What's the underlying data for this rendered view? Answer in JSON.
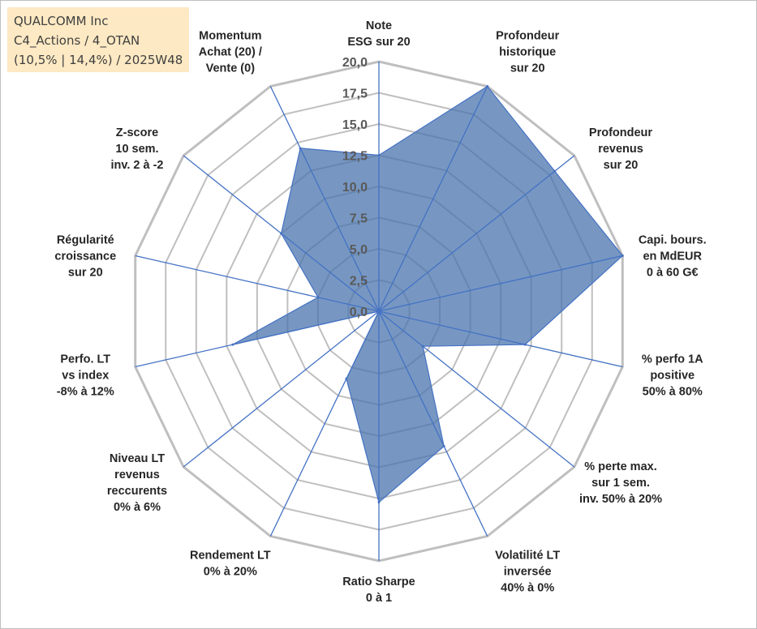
{
  "title_box": {
    "line1": "QUALCOMM Inc",
    "line2": "C4_Actions / 4_OTAN",
    "line3": "(10,5% | 14,4%) / 2025W48"
  },
  "chart_data": {
    "type": "radar",
    "ylim": [
      0,
      20
    ],
    "ticks": [
      "0,0",
      "2,5",
      "5,0",
      "7,5",
      "10,0",
      "12,5",
      "15,0",
      "17,5",
      "20,0"
    ],
    "axes": [
      [
        "Note",
        "ESG sur 20"
      ],
      [
        "Profondeur",
        "historique",
        "sur 20"
      ],
      [
        "Profondeur",
        "revenus",
        "sur 20"
      ],
      [
        "Capi. bours.",
        "en MdEUR",
        "0 à 60 G€"
      ],
      [
        "% perfo 1A",
        "positive",
        "50% à 80%"
      ],
      [
        "% perte max.",
        "sur 1 sem.",
        "inv. 50% à 20%"
      ],
      [
        "Volatilité LT",
        "inversée",
        "40% à 0%"
      ],
      [
        "Ratio Sharpe",
        "0 à 1"
      ],
      [
        "Rendement LT",
        "0% à 20%"
      ],
      [
        "Niveau LT",
        "revenus",
        "reccurents",
        "0% à 6%"
      ],
      [
        "Perfo. LT",
        "vs index",
        "-8% à 12%"
      ],
      [
        "Régularité",
        "croissance",
        "sur 20"
      ],
      [
        "Z-score",
        "10 sem.",
        "inv. 2 à -2"
      ],
      [
        "Momentum",
        "Achat (20) /",
        "Vente (0)"
      ]
    ],
    "series": [
      {
        "values": [
          12.5,
          20.0,
          18.0,
          20.0,
          12.0,
          4.5,
          12.0,
          15.3,
          6.0,
          0.0,
          12.0,
          5.0,
          10.0,
          14.5
        ]
      }
    ],
    "colors": {
      "fill": "#4a74ad",
      "fill_opacity": 0.75,
      "stroke": "#4472c4",
      "spoke": "#4472c4",
      "grid": "#bfbfbf"
    },
    "grid": true,
    "legend": "none"
  }
}
